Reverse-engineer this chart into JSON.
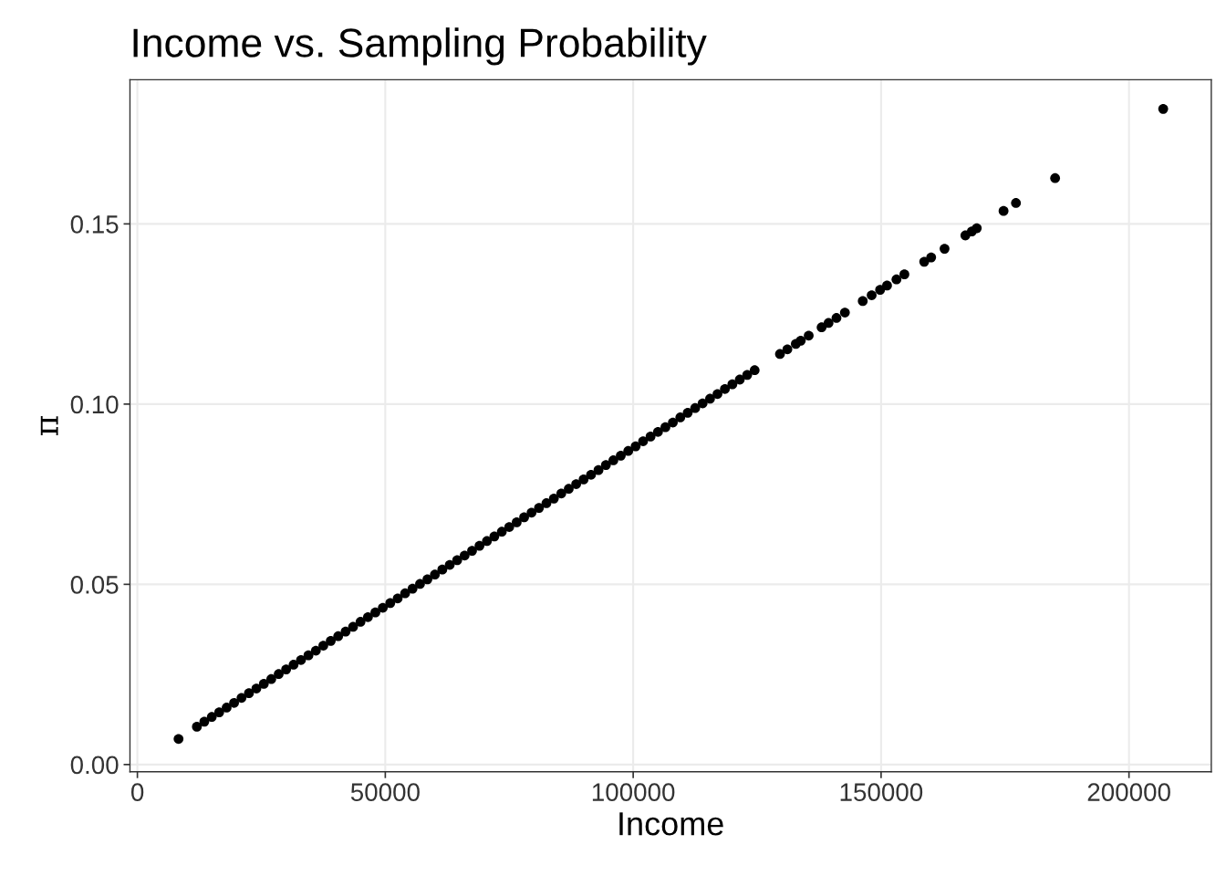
{
  "chart_data": {
    "type": "scatter",
    "title": "Income vs. Sampling Probability",
    "xlabel": "Income",
    "ylabel": "π",
    "x": [
      8300,
      12000,
      13500,
      15000,
      16500,
      18000,
      19500,
      21000,
      22500,
      24000,
      25500,
      27000,
      28500,
      30000,
      31500,
      33000,
      34500,
      36000,
      37500,
      39000,
      40500,
      42000,
      43500,
      45000,
      46500,
      48000,
      49500,
      51000,
      52500,
      54000,
      55500,
      57000,
      58500,
      60000,
      61500,
      63000,
      64500,
      66000,
      67500,
      69000,
      70500,
      72000,
      73500,
      75000,
      76500,
      78000,
      79500,
      81000,
      82500,
      84000,
      85500,
      87000,
      88500,
      90000,
      91500,
      93000,
      94500,
      96000,
      97500,
      99000,
      100500,
      102000,
      103500,
      105000,
      106500,
      108000,
      109500,
      111000,
      112500,
      114000,
      115500,
      117000,
      118500,
      120000,
      121500,
      123000,
      124500,
      129600,
      131100,
      132800,
      133800,
      135400,
      138000,
      139400,
      141000,
      142700,
      146300,
      148100,
      149800,
      151200,
      153100,
      154700,
      158700,
      160100,
      162800,
      167000,
      168300,
      169300,
      174700,
      177200,
      185100,
      206900
    ],
    "values": [
      0.0071,
      0.0105,
      0.0119,
      0.0132,
      0.0145,
      0.0158,
      0.0171,
      0.0185,
      0.0198,
      0.0211,
      0.0224,
      0.0237,
      0.0251,
      0.0264,
      0.0277,
      0.029,
      0.0303,
      0.0316,
      0.033,
      0.0343,
      0.0356,
      0.0369,
      0.0382,
      0.0396,
      0.0409,
      0.0422,
      0.0435,
      0.0448,
      0.0461,
      0.0475,
      0.0488,
      0.0501,
      0.0514,
      0.0527,
      0.0541,
      0.0554,
      0.0567,
      0.058,
      0.0593,
      0.0607,
      0.062,
      0.0633,
      0.0646,
      0.0659,
      0.0672,
      0.0686,
      0.0699,
      0.0712,
      0.0725,
      0.0738,
      0.0752,
      0.0765,
      0.0778,
      0.0791,
      0.0804,
      0.0817,
      0.0831,
      0.0844,
      0.0857,
      0.087,
      0.0883,
      0.0897,
      0.091,
      0.0923,
      0.0936,
      0.0949,
      0.0963,
      0.0976,
      0.0989,
      0.1002,
      0.1015,
      0.1028,
      0.1042,
      0.1055,
      0.1068,
      0.1081,
      0.1094,
      0.1139,
      0.1152,
      0.1167,
      0.1176,
      0.119,
      0.1213,
      0.1225,
      0.1239,
      0.1254,
      0.1286,
      0.1302,
      0.1317,
      0.1329,
      0.1346,
      0.136,
      0.1395,
      0.1407,
      0.1431,
      0.1468,
      0.1479,
      0.1488,
      0.1536,
      0.1558,
      0.1627,
      0.1819
    ],
    "color": "#000000",
    "marker": "circle",
    "xlim": [
      -1500,
      216600
    ],
    "xticks": [
      0,
      50000,
      100000,
      150000,
      200000
    ],
    "ylim": [
      -0.002,
      0.19
    ],
    "yticks": [
      {
        "value": 0,
        "label": "0.00"
      },
      {
        "value": 0.05,
        "label": "0.05"
      },
      {
        "value": 0.1,
        "label": "0.10"
      },
      {
        "value": 0.15,
        "label": "0.15"
      }
    ],
    "grid": true,
    "legend": false
  }
}
